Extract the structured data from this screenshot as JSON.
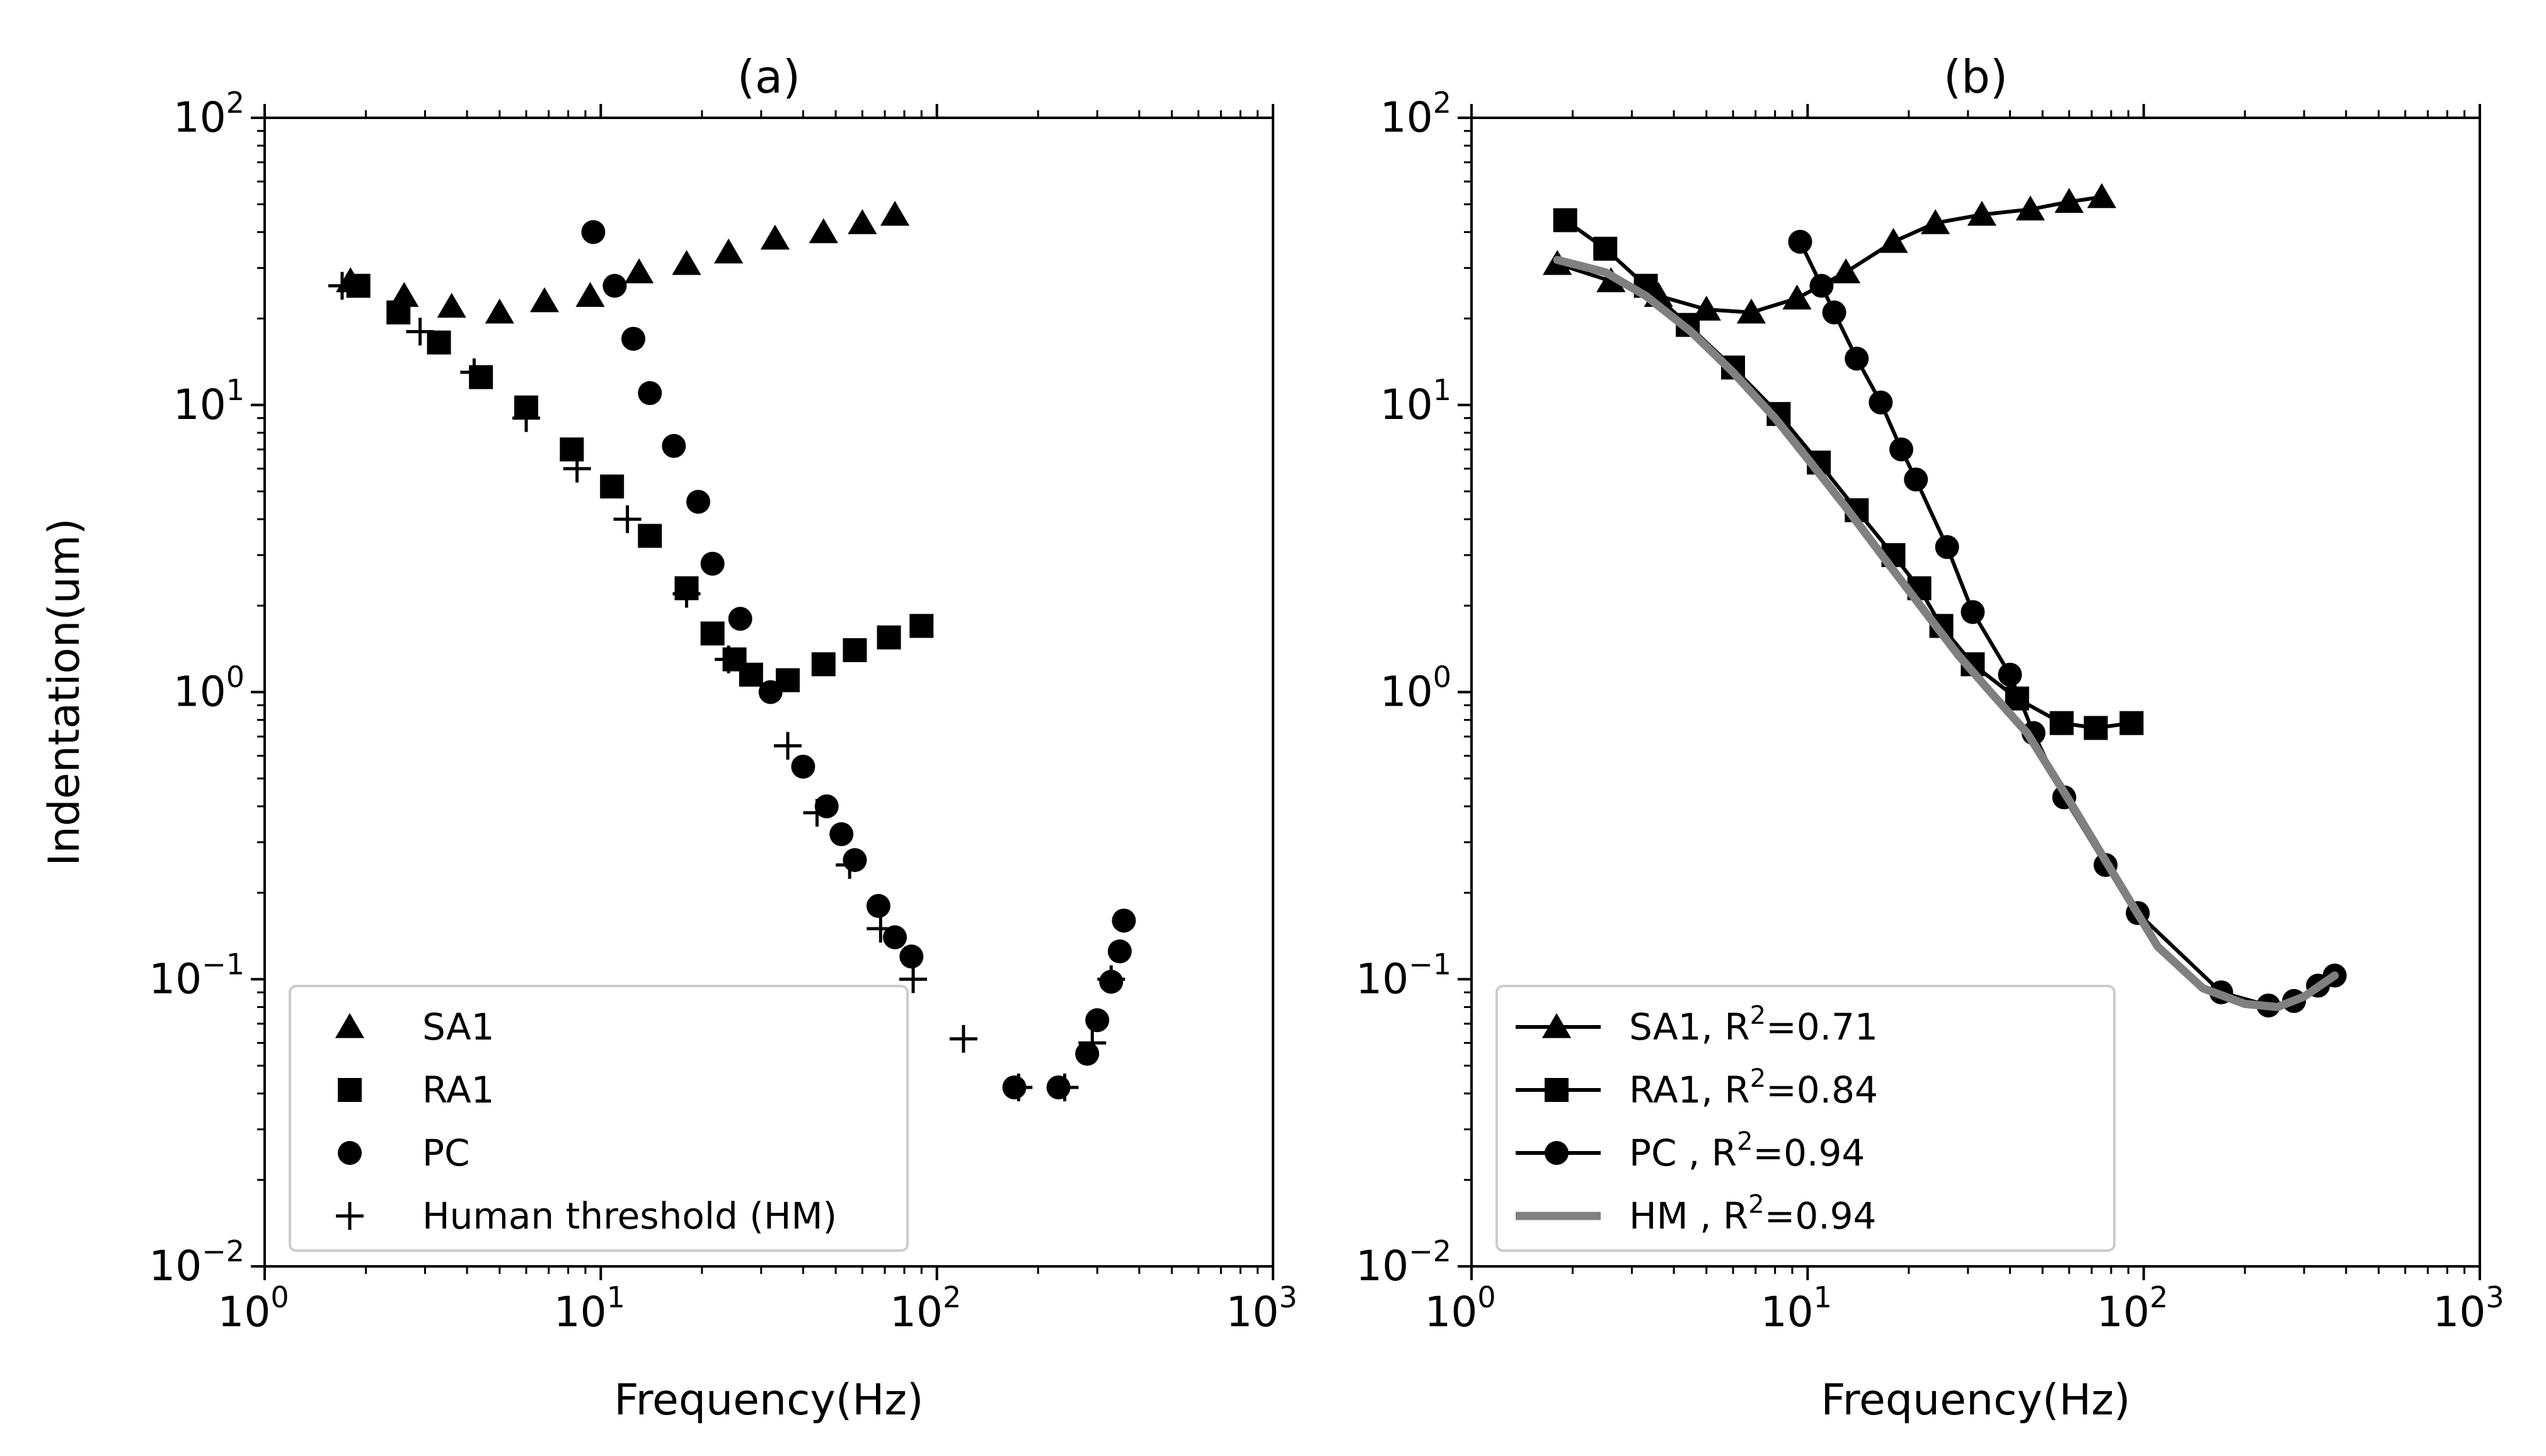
{
  "chart_data": [
    {
      "type": "scatter",
      "title": "(a)",
      "xlabel": "Frequency(Hz)",
      "ylabel": "Indentation(um)",
      "xscale": "log",
      "yscale": "log",
      "xlim": [
        1,
        1000
      ],
      "ylim": [
        0.01,
        100
      ],
      "x_ticks": [
        {
          "base": "10",
          "exp": "0"
        },
        {
          "base": "10",
          "exp": "1"
        },
        {
          "base": "10",
          "exp": "2"
        },
        {
          "base": "10",
          "exp": "3"
        }
      ],
      "y_ticks": [
        {
          "base": "10",
          "exp": "−2"
        },
        {
          "base": "10",
          "exp": "−1"
        },
        {
          "base": "10",
          "exp": "0"
        },
        {
          "base": "10",
          "exp": "1"
        },
        {
          "base": "10",
          "exp": "2"
        }
      ],
      "grid": false,
      "legend_position": "lower-left",
      "series": [
        {
          "name": "SA1",
          "marker": "triangle",
          "x": [
            1.8,
            2.6,
            3.6,
            5.0,
            6.8,
            9.3,
            13,
            18,
            24,
            33,
            46,
            60,
            75
          ],
          "y": [
            27,
            24,
            22,
            21,
            23,
            24,
            29,
            31,
            34,
            38,
            40,
            43,
            46
          ]
        },
        {
          "name": "RA1",
          "marker": "square",
          "x": [
            1.9,
            2.5,
            3.3,
            4.4,
            6.0,
            8.2,
            10.8,
            14,
            18,
            21.5,
            25,
            28,
            36,
            46,
            57,
            72,
            90
          ],
          "y": [
            26,
            21,
            16.5,
            12.5,
            9.8,
            7.0,
            5.2,
            3.5,
            2.3,
            1.6,
            1.3,
            1.15,
            1.1,
            1.25,
            1.4,
            1.55,
            1.7
          ]
        },
        {
          "name": "PC",
          "marker": "circle",
          "x": [
            9.5,
            11,
            12.5,
            14,
            16.5,
            19.5,
            21.5,
            26,
            32,
            40,
            47,
            52,
            57,
            67,
            75,
            84,
            170,
            230,
            280,
            300,
            330,
            350,
            360
          ],
          "y": [
            40,
            26,
            17,
            11,
            7.2,
            4.6,
            2.8,
            1.8,
            1.0,
            0.55,
            0.4,
            0.32,
            0.26,
            0.18,
            0.14,
            0.12,
            0.042,
            0.042,
            0.055,
            0.072,
            0.098,
            0.125,
            0.16
          ]
        },
        {
          "name": "Human threshold (HM)",
          "marker": "plus",
          "x": [
            1.7,
            2.9,
            4.2,
            6.0,
            8.5,
            12,
            18,
            24,
            36,
            44,
            55,
            68,
            85,
            120,
            175,
            240,
            290,
            330
          ],
          "y": [
            26,
            18,
            13,
            9,
            6,
            4,
            2.2,
            1.3,
            0.65,
            0.38,
            0.25,
            0.15,
            0.1,
            0.062,
            0.042,
            0.042,
            0.06,
            0.1
          ]
        }
      ]
    },
    {
      "type": "line",
      "title": "(b)",
      "xlabel": "Frequency(Hz)",
      "ylabel": "",
      "xscale": "log",
      "yscale": "log",
      "xlim": [
        1,
        1000
      ],
      "ylim": [
        0.01,
        100
      ],
      "x_ticks": [
        {
          "base": "10",
          "exp": "0"
        },
        {
          "base": "10",
          "exp": "1"
        },
        {
          "base": "10",
          "exp": "2"
        },
        {
          "base": "10",
          "exp": "3"
        }
      ],
      "y_ticks": [
        {
          "base": "10",
          "exp": "−2"
        },
        {
          "base": "10",
          "exp": "−1"
        },
        {
          "base": "10",
          "exp": "0"
        },
        {
          "base": "10",
          "exp": "1"
        },
        {
          "base": "10",
          "exp": "2"
        }
      ],
      "grid": false,
      "legend_position": "lower-left",
      "series": [
        {
          "name": "SA1, R²=0.71",
          "label_main": "SA1, R",
          "label_sup": "2",
          "label_tail": "=0.71",
          "marker": "triangle",
          "color": "#000000",
          "x": [
            1.8,
            2.6,
            3.6,
            5.0,
            6.8,
            9.3,
            13,
            18,
            24,
            33,
            46,
            60,
            75
          ],
          "y": [
            31,
            27,
            24,
            21.5,
            21,
            23.5,
            29,
            37,
            43,
            46,
            48,
            51,
            53
          ]
        },
        {
          "name": "RA1, R²=0.84",
          "label_main": "RA1, R",
          "label_sup": "2",
          "label_tail": "=0.84",
          "marker": "square",
          "color": "#000000",
          "x": [
            1.9,
            2.5,
            3.3,
            4.4,
            6.0,
            8.2,
            10.8,
            14,
            18,
            21.5,
            25,
            31,
            42,
            57,
            72,
            92
          ],
          "y": [
            44,
            35,
            26,
            19,
            13.5,
            9.3,
            6.3,
            4.3,
            3.0,
            2.3,
            1.7,
            1.25,
            0.95,
            0.78,
            0.75,
            0.78
          ]
        },
        {
          "name": "PC , R²=0.94",
          "label_main": "PC , R",
          "label_sup": "2",
          "label_tail": "=0.94",
          "marker": "circle",
          "color": "#000000",
          "x": [
            9.5,
            11,
            12,
            14,
            16.5,
            19,
            21,
            26,
            31,
            40,
            47,
            58,
            77,
            96,
            170,
            235,
            280,
            330,
            370
          ],
          "y": [
            37,
            26,
            21,
            14.5,
            10.2,
            7,
            5.5,
            3.2,
            1.9,
            1.15,
            0.72,
            0.43,
            0.25,
            0.17,
            0.09,
            0.081,
            0.084,
            0.095,
            0.103
          ]
        },
        {
          "name": "HM , R²=0.94",
          "label_main": "HM , R",
          "label_sup": "2",
          "label_tail": "=0.94",
          "marker": "none",
          "color": "#808080",
          "x": [
            1.8,
            2.5,
            3.3,
            4.5,
            6,
            8,
            10,
            13,
            17,
            22,
            28,
            35,
            45,
            60,
            80,
            110,
            150,
            200,
            250,
            300,
            370
          ],
          "y": [
            32,
            29,
            24,
            18,
            13,
            9,
            6.5,
            4.4,
            2.9,
            1.95,
            1.35,
            1.0,
            0.72,
            0.42,
            0.24,
            0.13,
            0.093,
            0.082,
            0.08,
            0.087,
            0.103
          ]
        }
      ]
    }
  ]
}
